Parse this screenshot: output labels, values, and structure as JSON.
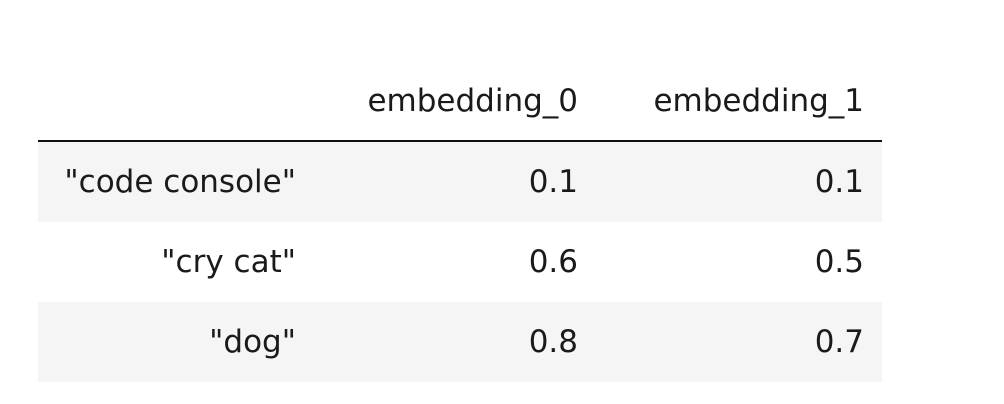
{
  "table": {
    "columns": [
      "",
      "embedding_0",
      "embedding_1"
    ],
    "rows": [
      {
        "index": "\"code console\"",
        "embedding_0": "0.1",
        "embedding_1": "0.1"
      },
      {
        "index": "\"cry cat\"",
        "embedding_0": "0.6",
        "embedding_1": "0.5"
      },
      {
        "index": "\"dog\"",
        "embedding_0": "0.8",
        "embedding_1": "0.7"
      }
    ]
  },
  "colors": {
    "shaded_row": "#f5f5f5",
    "header_rule": "#111111",
    "text": "#1a1a1a"
  }
}
